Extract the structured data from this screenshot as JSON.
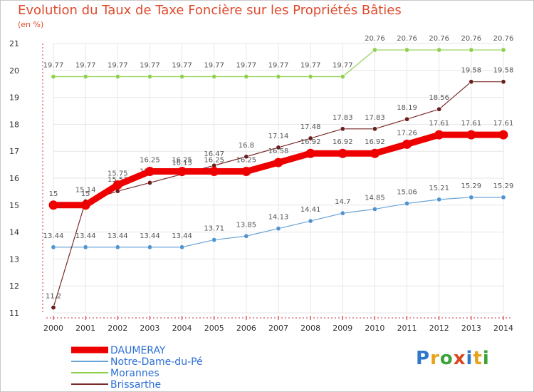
{
  "header": {
    "title": "Evolution du Taux de Taxe Foncière sur les Propriétés Bâties",
    "unit": "(en %)"
  },
  "logo": {
    "letters": [
      "P",
      "r",
      "o",
      "x",
      "i",
      "t",
      "i"
    ],
    "colors": [
      "#2f78c9",
      "#e8a21a",
      "#3aa33a",
      "#d94820",
      "#2f78c9",
      "#e8a21a",
      "#3aa33a"
    ]
  },
  "chart_data": {
    "type": "line",
    "title": "Evolution du Taux de Taxe Foncière sur les Propriétés Bâties",
    "ylabel": "(en %)",
    "xlabel": "",
    "ylim": [
      11,
      21
    ],
    "yticks": [
      "11",
      "12",
      "13",
      "14",
      "15",
      "16",
      "17",
      "18",
      "19",
      "20",
      "21"
    ],
    "categories": [
      "2000",
      "2001",
      "2002",
      "2003",
      "2004",
      "2005",
      "2006",
      "2007",
      "2008",
      "2009",
      "2010",
      "2011",
      "2012",
      "2013",
      "2014"
    ],
    "grid": true,
    "legend_position": "bottom-left",
    "series": [
      {
        "name": "Morannes",
        "color": "#8fd14f",
        "marker": "#8fd14f",
        "width": 1.2,
        "values": [
          19.77,
          19.77,
          19.77,
          19.77,
          19.77,
          19.77,
          19.77,
          19.77,
          19.77,
          19.77,
          20.76,
          20.76,
          20.76,
          20.76,
          20.76
        ],
        "labels": [
          "19.77",
          "19.77",
          "19.77",
          "19.77",
          "19.77",
          "19.77",
          "19.77",
          "19.77",
          "19.77",
          "19.77",
          "20.76",
          "20.76",
          "20.76",
          "20.76",
          "20.76"
        ]
      },
      {
        "name": "Notre-Dame-du-Pé",
        "color": "#6aa3d6",
        "marker": "#4f94d1",
        "width": 1.2,
        "values": [
          13.44,
          13.44,
          13.44,
          13.44,
          13.44,
          13.71,
          13.85,
          14.13,
          14.41,
          14.7,
          14.85,
          15.06,
          15.21,
          15.29,
          15.29
        ],
        "labels": [
          "13.44",
          "13.44",
          "13.44",
          "13.44",
          "13.44",
          "13.71",
          "13.85",
          "14.13",
          "14.41",
          "14.7",
          "14.85",
          "15.06",
          "15.21",
          "15.29",
          "15.29"
        ]
      },
      {
        "name": "Brissarthe",
        "color": "#7b2a2a",
        "marker": "#6b1e1e",
        "width": 1.2,
        "values": [
          11.2,
          15.14,
          15.52,
          15.83,
          16.15,
          16.47,
          16.8,
          17.14,
          17.48,
          17.83,
          17.83,
          18.19,
          18.56,
          19.58,
          19.58
        ],
        "labels": [
          "11.2",
          "15.14",
          "15.52",
          "15.83",
          "16.15",
          "16.47",
          "16.8",
          "17.14",
          "17.48",
          "17.83",
          "17.83",
          "18.19",
          "18.56",
          "19.58",
          "19.58"
        ]
      },
      {
        "name": "DAUMERAY",
        "color": "#ee0000",
        "marker": "#ee0000",
        "width": 9,
        "values": [
          15,
          15,
          15.75,
          16.25,
          16.25,
          16.25,
          16.25,
          16.58,
          16.92,
          16.92,
          16.92,
          17.26,
          17.61,
          17.61,
          17.61
        ],
        "labels": [
          "15",
          "15",
          "15.75",
          "16.25",
          "16.25",
          "16.25",
          "16.25",
          "16.58",
          "16.92",
          "16.92",
          "16.92",
          "17.26",
          "17.61",
          "17.61",
          "17.61"
        ]
      }
    ],
    "legend": [
      "DAUMERAY",
      "Notre-Dame-du-Pé",
      "Morannes",
      "Brissarthe"
    ]
  }
}
